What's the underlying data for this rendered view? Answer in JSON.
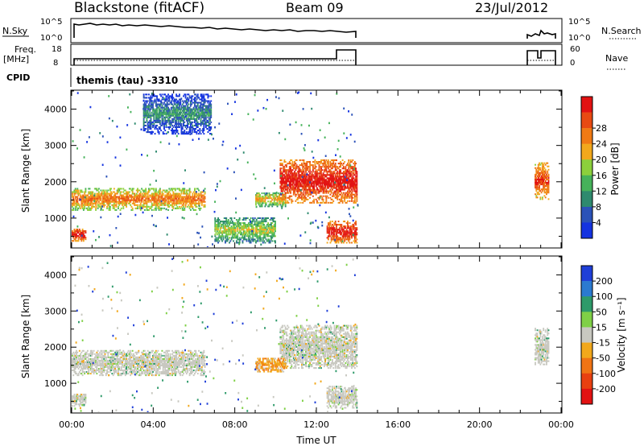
{
  "header": {
    "radar": "Blackstone (fitACF)",
    "beam": "Beam 09",
    "date": "23/Jul/2012"
  },
  "status_panels": {
    "nsky": {
      "label": "N.Sky",
      "right_label": "N.Search",
      "left_ticks": [
        "10^5",
        "10^0"
      ],
      "right_ticks": [
        "10^5",
        "10^0"
      ]
    },
    "freq": {
      "label_line1": "Freq.",
      "label_line2": "[MHz]",
      "right_label": "Nave",
      "left_ticks": [
        "18",
        "8"
      ],
      "right_ticks": [
        "60",
        "0"
      ]
    },
    "cpid": {
      "label": "CPID",
      "text": "themis (tau) -3310"
    }
  },
  "chart_data": [
    {
      "type": "heatmap",
      "name": "power",
      "xlabel": "Time UT",
      "ylabel": "Slant Range [km]",
      "xlim": [
        0,
        24
      ],
      "ylim": [
        200,
        4500
      ],
      "x_tick_labels": [
        "00:00",
        "04:00",
        "08:00",
        "12:00",
        "16:00",
        "20:00",
        "00:00"
      ],
      "y_tick_labels": [
        "1000",
        "2000",
        "3000",
        "4000"
      ],
      "colorbar": {
        "label": "Power [dB]",
        "tick_labels": [
          "4",
          "8",
          "12",
          "16",
          "20",
          "24",
          "28"
        ],
        "colors": [
          "#1433e0",
          "#2b52b8",
          "#2e8a6e",
          "#46b25a",
          "#8cd03c",
          "#f2a81c",
          "#f07a14",
          "#e84a12",
          "#e21212"
        ]
      },
      "features": [
        {
          "t_start": 0.0,
          "t_end": 0.7,
          "r_min": 350,
          "r_max": 700,
          "level": 7
        },
        {
          "t_start": 0.0,
          "t_end": 6.5,
          "r_min": 1200,
          "r_max": 1800,
          "level": 5
        },
        {
          "t_start": 3.5,
          "t_end": 6.8,
          "r_min": 3300,
          "r_max": 4400,
          "level": 1
        },
        {
          "t_start": 7.0,
          "t_end": 10.0,
          "r_min": 300,
          "r_max": 1000,
          "level": 3
        },
        {
          "t_start": 9.0,
          "t_end": 10.5,
          "r_min": 1300,
          "r_max": 1700,
          "level": 4
        },
        {
          "t_start": 10.2,
          "t_end": 14.0,
          "r_min": 1400,
          "r_max": 2600,
          "level": 7
        },
        {
          "t_start": 12.5,
          "t_end": 14.0,
          "r_min": 300,
          "r_max": 900,
          "level": 7
        },
        {
          "t_start": 22.7,
          "t_end": 23.4,
          "r_min": 1500,
          "r_max": 2500,
          "level": 6
        }
      ]
    },
    {
      "type": "heatmap",
      "name": "velocity",
      "xlabel": "Time UT",
      "ylabel": "Slant Range [km]",
      "xlim": [
        0,
        24
      ],
      "ylim": [
        200,
        4500
      ],
      "x_tick_labels": [
        "00:00",
        "04:00",
        "08:00",
        "12:00",
        "16:00",
        "20:00",
        "00:00"
      ],
      "y_tick_labels": [
        "1000",
        "2000",
        "3000",
        "4000"
      ],
      "colorbar": {
        "label": "Velocity [m s⁻¹]",
        "tick_labels": [
          "200",
          "100",
          "50",
          "15",
          "-15",
          "-50",
          "-100",
          "-200"
        ],
        "colors": [
          "#1f3fd8",
          "#2b7ad0",
          "#2e9a6a",
          "#7fd046",
          "#c8c8c0",
          "#f2a81c",
          "#f07414",
          "#e84010",
          "#e21212"
        ]
      },
      "features": [
        {
          "t_start": 0.0,
          "t_end": 0.7,
          "r_min": 350,
          "r_max": 700,
          "class": "gray"
        },
        {
          "t_start": 0.0,
          "t_end": 6.5,
          "r_min": 1200,
          "r_max": 1900,
          "class": "gray"
        },
        {
          "t_start": 10.2,
          "t_end": 14.0,
          "r_min": 1400,
          "r_max": 2600,
          "class": "gray"
        },
        {
          "t_start": 9.0,
          "t_end": 10.5,
          "r_min": 1300,
          "r_max": 1700,
          "class": "orange"
        },
        {
          "t_start": 12.5,
          "t_end": 14.0,
          "r_min": 300,
          "r_max": 900,
          "class": "gray"
        },
        {
          "t_start": 22.7,
          "t_end": 23.4,
          "r_min": 1500,
          "r_max": 2500,
          "class": "gray"
        }
      ]
    }
  ]
}
